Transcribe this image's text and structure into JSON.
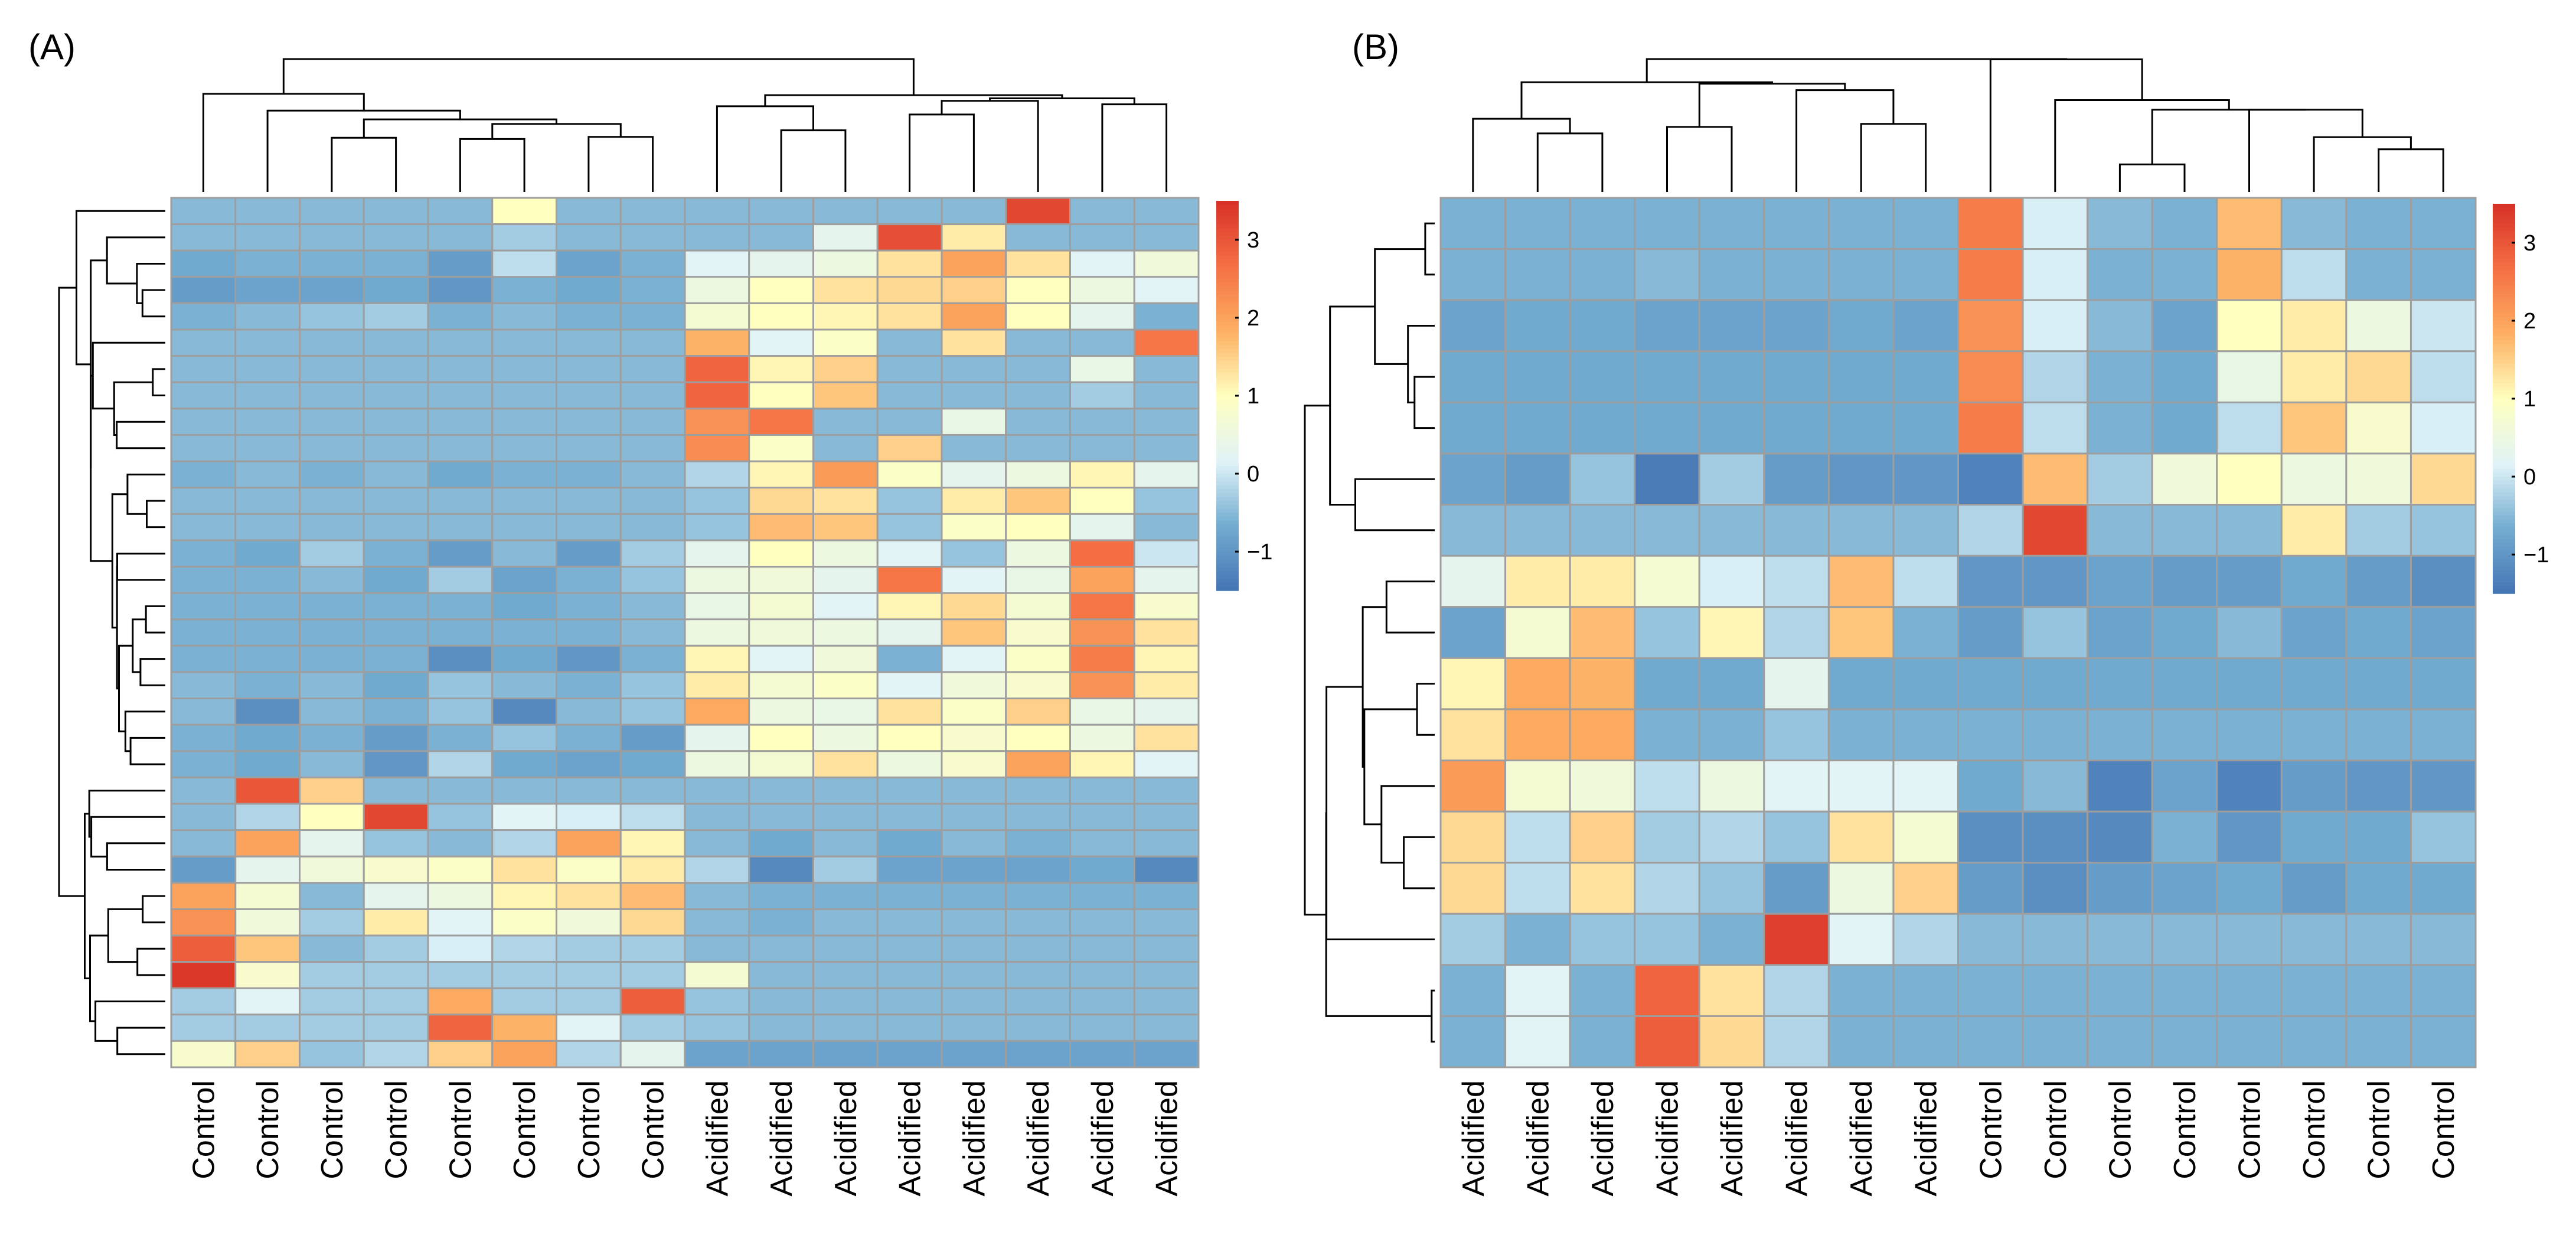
{
  "chart_data": [
    {
      "type": "heatmap",
      "panel": "(A)",
      "columns": [
        "Control",
        "Control",
        "Control",
        "Control",
        "Control",
        "Control",
        "Control",
        "Control",
        "Acidified",
        "Acidified",
        "Acidified",
        "Acidified",
        "Acidified",
        "Acidified",
        "Acidified",
        "Acidified"
      ],
      "color_scale": {
        "min": -1.5,
        "max": 3.5,
        "ticks": [
          -1,
          0,
          1,
          2,
          3
        ],
        "tick_labels": [
          "−1",
          "0",
          "1",
          "2",
          "3"
        ]
      },
      "values": [
        [
          -0.5,
          -0.5,
          -0.5,
          -0.5,
          -0.5,
          1.0,
          -0.5,
          -0.5,
          -0.5,
          -0.5,
          -0.5,
          -0.5,
          -0.5,
          3.2,
          -0.5,
          -0.5
        ],
        [
          -0.5,
          -0.5,
          -0.5,
          -0.5,
          -0.5,
          -0.3,
          -0.5,
          -0.5,
          -0.5,
          -0.5,
          0.3,
          3.1,
          1.2,
          -0.5,
          -0.5,
          -0.5
        ],
        [
          -0.7,
          -0.6,
          -0.6,
          -0.6,
          -0.9,
          -0.1,
          -0.8,
          -0.6,
          0.2,
          0.3,
          0.5,
          1.3,
          2.0,
          1.3,
          0.2,
          0.6
        ],
        [
          -0.9,
          -0.8,
          -0.8,
          -0.7,
          -1.0,
          -0.6,
          -0.7,
          -0.6,
          0.5,
          1.0,
          1.3,
          1.4,
          1.5,
          1.0,
          0.5,
          0.2
        ],
        [
          -0.6,
          -0.5,
          -0.4,
          -0.3,
          -0.6,
          -0.5,
          -0.6,
          -0.6,
          0.7,
          1.0,
          1.1,
          1.3,
          2.0,
          1.0,
          0.3,
          -0.6
        ],
        [
          -0.5,
          -0.5,
          -0.5,
          -0.5,
          -0.5,
          -0.5,
          -0.5,
          -0.5,
          1.8,
          0.2,
          0.9,
          -0.5,
          1.3,
          -0.5,
          -0.5,
          2.6
        ],
        [
          -0.5,
          -0.5,
          -0.5,
          -0.5,
          -0.5,
          -0.5,
          -0.5,
          -0.5,
          2.8,
          1.1,
          1.5,
          -0.5,
          -0.5,
          -0.5,
          0.4,
          -0.5
        ],
        [
          -0.5,
          -0.5,
          -0.5,
          -0.5,
          -0.5,
          -0.5,
          -0.5,
          -0.5,
          2.8,
          1.0,
          1.6,
          -0.5,
          -0.5,
          -0.5,
          -0.3,
          -0.5
        ],
        [
          -0.5,
          -0.5,
          -0.5,
          -0.5,
          -0.5,
          -0.5,
          -0.5,
          -0.5,
          2.2,
          2.6,
          -0.5,
          -0.5,
          0.4,
          -0.5,
          -0.5,
          -0.5
        ],
        [
          -0.5,
          -0.5,
          -0.5,
          -0.5,
          -0.5,
          -0.5,
          -0.5,
          -0.5,
          2.3,
          0.9,
          -0.5,
          1.5,
          -0.5,
          -0.5,
          -0.5,
          -0.5
        ],
        [
          -0.6,
          -0.5,
          -0.6,
          -0.5,
          -0.7,
          -0.6,
          -0.6,
          -0.5,
          -0.2,
          1.1,
          2.1,
          0.9,
          0.3,
          0.5,
          1.1,
          0.3
        ],
        [
          -0.5,
          -0.5,
          -0.5,
          -0.5,
          -0.5,
          -0.5,
          -0.5,
          -0.5,
          -0.4,
          1.4,
          1.3,
          -0.4,
          1.2,
          1.6,
          1.0,
          -0.4
        ],
        [
          -0.5,
          -0.5,
          -0.5,
          -0.5,
          -0.5,
          -0.5,
          -0.5,
          -0.5,
          -0.4,
          1.7,
          1.6,
          -0.4,
          0.9,
          1.0,
          0.3,
          -0.5
        ],
        [
          -0.6,
          -0.7,
          -0.3,
          -0.6,
          -0.9,
          -0.5,
          -0.9,
          -0.3,
          0.3,
          1.0,
          0.5,
          0.2,
          -0.4,
          0.5,
          2.7,
          0.0
        ],
        [
          -0.6,
          -0.6,
          -0.5,
          -0.7,
          -0.3,
          -0.8,
          -0.6,
          -0.4,
          0.5,
          0.6,
          0.3,
          2.6,
          0.2,
          0.4,
          2.0,
          0.3
        ],
        [
          -0.6,
          -0.6,
          -0.6,
          -0.6,
          -0.6,
          -0.7,
          -0.6,
          -0.5,
          0.4,
          0.7,
          0.2,
          1.1,
          1.4,
          0.7,
          2.6,
          0.8
        ],
        [
          -0.6,
          -0.6,
          -0.6,
          -0.6,
          -0.6,
          -0.6,
          -0.6,
          -0.5,
          0.5,
          0.6,
          0.5,
          0.3,
          1.6,
          0.8,
          2.2,
          1.3
        ],
        [
          -0.6,
          -0.6,
          -0.6,
          -0.6,
          -1.1,
          -0.7,
          -1.0,
          -0.6,
          1.1,
          0.2,
          0.6,
          -0.6,
          0.2,
          0.9,
          2.5,
          1.1
        ],
        [
          -0.5,
          -0.6,
          -0.5,
          -0.7,
          -0.4,
          -0.5,
          -0.6,
          -0.4,
          1.2,
          0.7,
          0.9,
          0.2,
          0.6,
          0.8,
          2.2,
          1.2
        ],
        [
          -0.5,
          -1.1,
          -0.5,
          -0.6,
          -0.4,
          -1.2,
          -0.5,
          -0.4,
          1.9,
          0.5,
          0.4,
          1.3,
          0.9,
          1.5,
          0.4,
          0.3
        ],
        [
          -0.6,
          -0.7,
          -0.6,
          -0.9,
          -0.6,
          -0.4,
          -0.6,
          -0.9,
          0.3,
          1.0,
          0.5,
          1.0,
          0.8,
          1.0,
          0.5,
          1.3
        ],
        [
          -0.6,
          -0.7,
          -0.5,
          -1.0,
          -0.2,
          -0.7,
          -0.8,
          -0.7,
          0.5,
          0.7,
          1.3,
          0.5,
          0.8,
          2.0,
          1.1,
          0.2
        ],
        [
          -0.5,
          3.0,
          1.5,
          -0.5,
          -0.5,
          -0.5,
          -0.5,
          -0.5,
          -0.5,
          -0.5,
          -0.5,
          -0.5,
          -0.5,
          -0.5,
          -0.5,
          -0.5
        ],
        [
          -0.5,
          -0.2,
          1.0,
          3.2,
          -0.4,
          0.2,
          0.1,
          -0.1,
          -0.5,
          -0.5,
          -0.5,
          -0.5,
          -0.5,
          -0.5,
          -0.5,
          -0.5
        ],
        [
          -0.5,
          2.0,
          0.3,
          -0.4,
          -0.5,
          -0.2,
          2.0,
          1.1,
          -0.5,
          -0.7,
          -0.5,
          -0.7,
          -0.5,
          -0.6,
          -0.5,
          -0.5
        ],
        [
          -0.9,
          0.3,
          0.6,
          0.8,
          0.9,
          1.3,
          0.9,
          1.2,
          -0.2,
          -1.2,
          -0.3,
          -0.8,
          -0.8,
          -0.8,
          -0.7,
          -1.2
        ],
        [
          2.0,
          0.7,
          -0.5,
          0.3,
          0.5,
          1.1,
          1.3,
          1.7,
          -0.5,
          -0.6,
          -0.6,
          -0.6,
          -0.6,
          -0.6,
          -0.6,
          -0.6
        ],
        [
          2.2,
          0.6,
          -0.3,
          1.2,
          0.2,
          0.9,
          0.6,
          1.4,
          -0.5,
          -0.6,
          -0.5,
          -0.5,
          -0.5,
          -0.5,
          -0.5,
          -0.5
        ],
        [
          2.9,
          1.6,
          -0.5,
          -0.3,
          0.1,
          -0.2,
          -0.3,
          -0.3,
          -0.5,
          -0.5,
          -0.5,
          -0.5,
          -0.5,
          -0.5,
          -0.5,
          -0.5
        ],
        [
          3.4,
          0.8,
          -0.3,
          -0.3,
          -0.3,
          -0.3,
          -0.3,
          -0.3,
          0.7,
          -0.5,
          -0.5,
          -0.5,
          -0.5,
          -0.5,
          -0.5,
          -0.5
        ],
        [
          -0.3,
          0.2,
          -0.3,
          -0.3,
          1.9,
          -0.3,
          -0.3,
          2.9,
          -0.4,
          -0.5,
          -0.5,
          -0.5,
          -0.5,
          -0.5,
          -0.5,
          -0.5
        ],
        [
          -0.3,
          -0.3,
          -0.3,
          -0.3,
          2.8,
          1.8,
          0.2,
          -0.3,
          -0.4,
          -0.5,
          -0.5,
          -0.5,
          -0.5,
          -0.5,
          -0.5,
          -0.5
        ],
        [
          0.8,
          1.5,
          -0.4,
          -0.2,
          1.5,
          2.0,
          -0.2,
          0.3,
          -0.8,
          -0.8,
          -0.8,
          -0.8,
          -0.8,
          -0.8,
          -0.8,
          -0.8
        ]
      ]
    },
    {
      "type": "heatmap",
      "panel": "(B)",
      "columns": [
        "Acidified",
        "Acidified",
        "Acidified",
        "Acidified",
        "Acidified",
        "Acidified",
        "Acidified",
        "Acidified",
        "Control",
        "Control",
        "Control",
        "Control",
        "Control",
        "Control",
        "Control",
        "Control"
      ],
      "color_scale": {
        "min": -1.5,
        "max": 3.5,
        "ticks": [
          -1,
          0,
          1,
          2,
          3
        ],
        "tick_labels": [
          "−1",
          "0",
          "1",
          "2",
          "3"
        ]
      },
      "values": [
        [
          -0.6,
          -0.6,
          -0.6,
          -0.6,
          -0.6,
          -0.6,
          -0.6,
          -0.6,
          2.5,
          0.1,
          -0.5,
          -0.6,
          1.7,
          -0.5,
          -0.6,
          -0.6
        ],
        [
          -0.6,
          -0.6,
          -0.6,
          -0.5,
          -0.6,
          -0.6,
          -0.6,
          -0.6,
          2.5,
          0.1,
          -0.6,
          -0.6,
          1.8,
          -0.1,
          -0.6,
          -0.6
        ],
        [
          -0.8,
          -0.7,
          -0.7,
          -0.8,
          -0.8,
          -0.8,
          -0.7,
          -0.8,
          2.2,
          0.1,
          -0.5,
          -0.8,
          1.0,
          1.2,
          0.5,
          0.0
        ],
        [
          -0.7,
          -0.7,
          -0.7,
          -0.7,
          -0.7,
          -0.7,
          -0.7,
          -0.7,
          2.3,
          -0.2,
          -0.6,
          -0.7,
          0.4,
          1.2,
          1.4,
          -0.1
        ],
        [
          -0.7,
          -0.7,
          -0.7,
          -0.7,
          -0.7,
          -0.7,
          -0.7,
          -0.7,
          2.5,
          -0.1,
          -0.6,
          -0.7,
          -0.1,
          1.6,
          0.8,
          0.1
        ],
        [
          -0.8,
          -0.9,
          -0.4,
          -1.4,
          -0.3,
          -0.9,
          -1.0,
          -1.0,
          -1.3,
          1.7,
          -0.3,
          0.6,
          1.0,
          0.5,
          0.6,
          1.4
        ],
        [
          -0.5,
          -0.5,
          -0.5,
          -0.5,
          -0.5,
          -0.5,
          -0.5,
          -0.5,
          -0.2,
          3.2,
          -0.5,
          -0.5,
          -0.5,
          1.2,
          -0.3,
          -0.4
        ],
        [
          0.3,
          1.2,
          1.2,
          0.7,
          0.1,
          -0.1,
          1.7,
          -0.1,
          -1.0,
          -1.0,
          -0.8,
          -0.9,
          -0.9,
          -0.7,
          -0.9,
          -1.1
        ],
        [
          -0.8,
          0.7,
          1.7,
          -0.4,
          1.1,
          -0.2,
          1.6,
          -0.6,
          -0.9,
          -0.4,
          -0.8,
          -0.7,
          -0.5,
          -0.8,
          -0.7,
          -0.8
        ],
        [
          1.1,
          1.9,
          1.8,
          -0.7,
          -0.7,
          0.3,
          -0.7,
          -0.7,
          -0.7,
          -0.7,
          -0.7,
          -0.7,
          -0.7,
          -0.7,
          -0.7,
          -0.7
        ],
        [
          1.3,
          1.9,
          1.9,
          -0.6,
          -0.6,
          -0.4,
          -0.6,
          -0.6,
          -0.6,
          -0.6,
          -0.6,
          -0.6,
          -0.6,
          -0.6,
          -0.6,
          -0.6
        ],
        [
          2.1,
          0.7,
          0.6,
          -0.1,
          0.5,
          0.2,
          0.2,
          0.2,
          -0.7,
          -0.5,
          -1.3,
          -0.8,
          -1.3,
          -0.9,
          -1.0,
          -1.0
        ],
        [
          1.4,
          -0.1,
          1.5,
          -0.3,
          -0.2,
          -0.4,
          1.3,
          0.7,
          -1.1,
          -1.1,
          -1.2,
          -0.6,
          -1.0,
          -0.7,
          -0.7,
          -0.4
        ],
        [
          1.4,
          -0.1,
          1.3,
          -0.2,
          -0.4,
          -0.9,
          0.5,
          1.5,
          -0.9,
          -1.1,
          -0.9,
          -0.8,
          -0.7,
          -0.9,
          -0.7,
          -0.7
        ],
        [
          -0.3,
          -0.6,
          -0.4,
          -0.4,
          -0.6,
          3.3,
          0.2,
          -0.2,
          -0.5,
          -0.5,
          -0.5,
          -0.5,
          -0.5,
          -0.5,
          -0.5,
          -0.5
        ],
        [
          -0.6,
          0.2,
          -0.6,
          2.8,
          1.3,
          -0.2,
          -0.6,
          -0.6,
          -0.6,
          -0.6,
          -0.6,
          -0.6,
          -0.6,
          -0.6,
          -0.6,
          -0.6
        ],
        [
          -0.6,
          0.2,
          -0.6,
          2.9,
          1.4,
          -0.2,
          -0.6,
          -0.6,
          -0.6,
          -0.6,
          -0.6,
          -0.6,
          -0.6,
          -0.6,
          -0.6,
          -0.6
        ]
      ]
    }
  ]
}
